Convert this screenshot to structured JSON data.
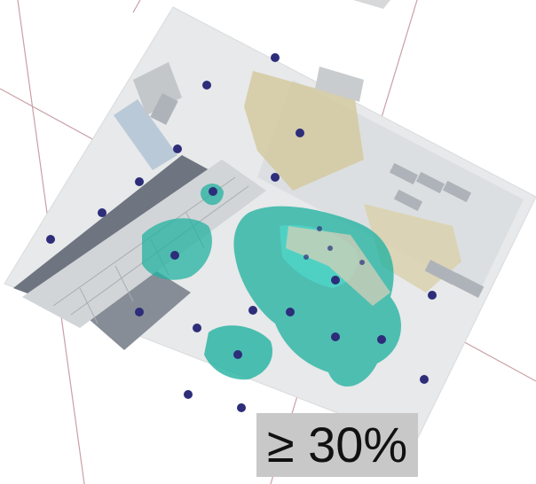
{
  "legend": {
    "threshold_text": "≥ 30%"
  },
  "colors": {
    "canvas": "#ffffff",
    "ground": "#e7e9ea",
    "grid_line": "#c9a0a6",
    "coverage_area": "#22b2a0",
    "coverage_highlight": "#4fe0d2",
    "sensor_marker": "#2d2d7a",
    "roof_dark": "#6e7480",
    "dirt": "#d4c9a0",
    "label_bg": "#c8c8c8",
    "label_text": "#111111"
  },
  "map": {
    "layers": [
      "aerial-imagery",
      "grid-lines",
      "coverage-zones",
      "sensor-markers"
    ]
  }
}
